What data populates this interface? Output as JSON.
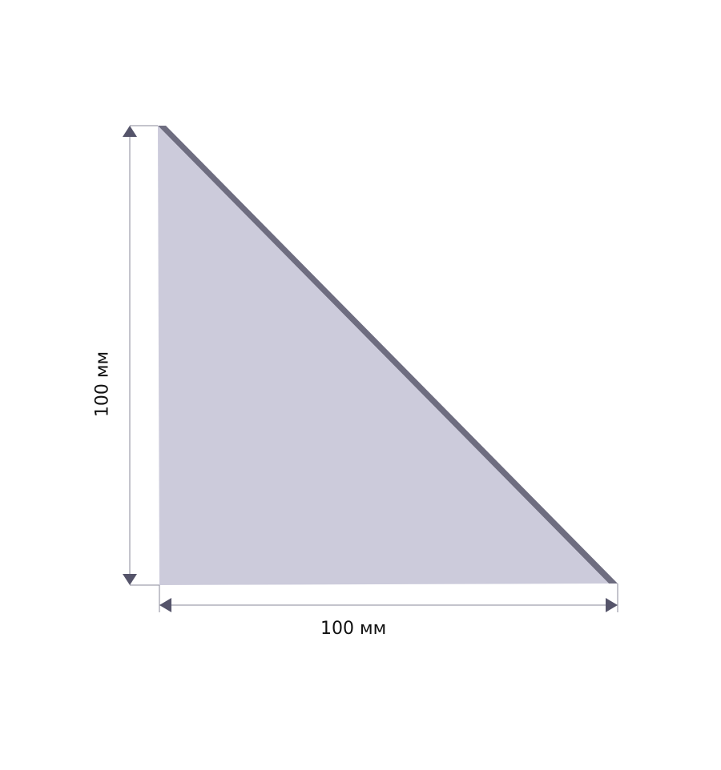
{
  "dimensions": {
    "width_label": "100 мм",
    "height_label": "100 мм"
  },
  "colors": {
    "fill": "#cccbdb",
    "edge": "#6e6d80",
    "line": "#8a8a98",
    "arrow": "#55546a"
  }
}
